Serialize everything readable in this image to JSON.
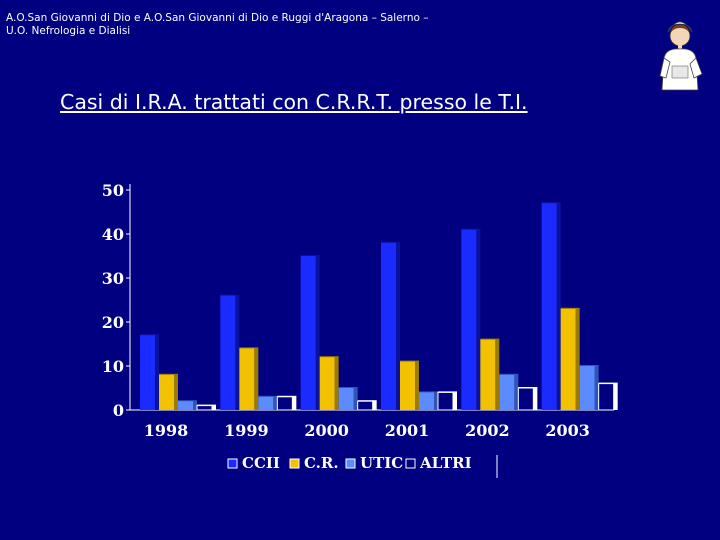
{
  "header": {
    "line1": "A.O.San Giovanni di Dio e A.O.San Giovanni di Dio e Ruggi d'Aragona – Salerno –",
    "line2": "U.O. Nefrologia e Dialisi"
  },
  "title": "Casi di I.R.A. trattati con C.R.R.T. presso le T.I.",
  "logo": "nurse-illustration",
  "colors": {
    "background": "#000080",
    "ccii": "#1a2bff",
    "cr": "#f2c200",
    "utic": "#5b8bff",
    "altri": "#000080"
  },
  "chart_data": {
    "type": "bar",
    "categories": [
      "1998",
      "1999",
      "2000",
      "2001",
      "2002",
      "2003"
    ],
    "series": [
      {
        "name": "CCII",
        "values": [
          17,
          26,
          35,
          38,
          41,
          47
        ]
      },
      {
        "name": "C.R.",
        "values": [
          8,
          14,
          12,
          11,
          16,
          23
        ]
      },
      {
        "name": "UTIC",
        "values": [
          2,
          3,
          5,
          4,
          8,
          10
        ]
      },
      {
        "name": "ALTRI",
        "values": [
          1,
          3,
          2,
          4,
          5,
          6
        ]
      }
    ],
    "yticks": [
      "0",
      "10",
      "20",
      "30",
      "40",
      "50"
    ],
    "ylim": [
      0,
      50
    ],
    "grid": false,
    "legend": "bottom"
  }
}
